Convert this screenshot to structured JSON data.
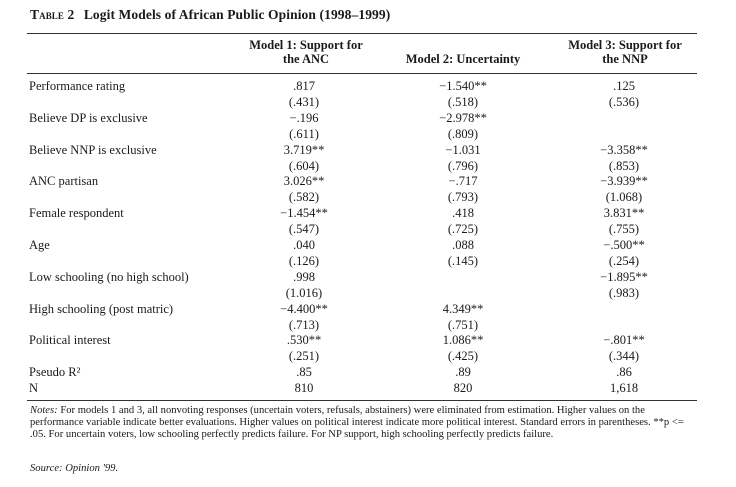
{
  "table": {
    "label": "Table 2",
    "title": "Logit Models of African Public Opinion (1998–1999)",
    "headers": {
      "model1": [
        "Model 1: Support for",
        "the ANC"
      ],
      "model2": [
        "Model 2: Uncertainty"
      ],
      "model3": [
        "Model 3: Support for",
        "the NNP"
      ]
    },
    "rows": [
      {
        "label": "Performance rating",
        "m1": ".817",
        "m1se": "(.431)",
        "m2": "−1.540**",
        "m2se": "(.518)",
        "m3": ".125",
        "m3se": "(.536)"
      },
      {
        "label": "Believe DP is exclusive",
        "m1": "−.196",
        "m1se": "(.611)",
        "m2": "−2.978**",
        "m2se": "(.809)",
        "m3": "",
        "m3se": ""
      },
      {
        "label": "Believe NNP is exclusive",
        "m1": "3.719**",
        "m1se": "(.604)",
        "m2": "−1.031",
        "m2se": "(.796)",
        "m3": "−3.358**",
        "m3se": "(.853)"
      },
      {
        "label": "ANC partisan",
        "m1": "3.026**",
        "m1se": "(.582)",
        "m2": "−.717",
        "m2se": "(.793)",
        "m3": "−3.939**",
        "m3se": "(1.068)"
      },
      {
        "label": "Female respondent",
        "m1": "−1.454**",
        "m1se": "(.547)",
        "m2": ".418",
        "m2se": "(.725)",
        "m3": "3.831**",
        "m3se": "(.755)"
      },
      {
        "label": "Age",
        "m1": ".040",
        "m1se": "(.126)",
        "m2": ".088",
        "m2se": "(.145)",
        "m3": "−.500**",
        "m3se": "(.254)"
      },
      {
        "label": "Low schooling (no high school)",
        "m1": ".998",
        "m1se": "(1.016)",
        "m2": "",
        "m2se": "",
        "m3": "−1.895**",
        "m3se": "(.983)"
      },
      {
        "label": "High schooling (post matric)",
        "m1": "−4.400**",
        "m1se": "(.713)",
        "m2": "4.349**",
        "m2se": "(.751)",
        "m3": "",
        "m3se": ""
      },
      {
        "label": "Political interest",
        "m1": ".530**",
        "m1se": "(.251)",
        "m2": "1.086**",
        "m2se": "(.425)",
        "m3": "−.801**",
        "m3se": "(.344)"
      }
    ],
    "pseudo_r2": {
      "label": "Pseudo R²",
      "m1": ".85",
      "m2": ".89",
      "m3": ".86"
    },
    "n": {
      "label": "N",
      "m1": "810",
      "m2": "820",
      "m3": "1,618"
    }
  },
  "notes": {
    "label": "Notes:",
    "text": "For models 1 and 3, all nonvoting responses (uncertain voters, refusals, abstainers) were eliminated from estimation. Higher values on the performance variable indicate better evaluations. Higher values on political interest indicate more political interest. Standard errors in parentheses. **p <= .05. For uncertain voters, low schooling perfectly predicts failure. For NP support, high schooling perfectly predicts failure.",
    "source_label": "Source:",
    "source_value": "Opinion '99."
  }
}
